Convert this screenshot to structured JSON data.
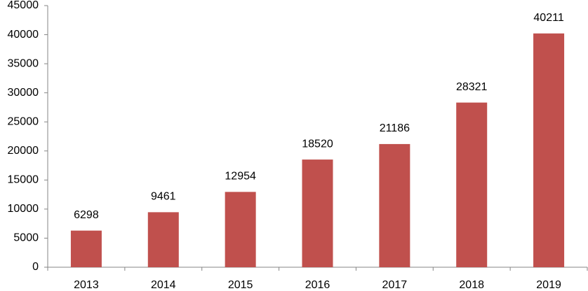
{
  "chart_data": {
    "type": "bar",
    "categories": [
      "2013",
      "2014",
      "2015",
      "2016",
      "2017",
      "2018",
      "2019"
    ],
    "values": [
      6298,
      9461,
      12954,
      18520,
      21186,
      28321,
      40211
    ],
    "color": "#c0504d",
    "ylim": [
      0,
      45000
    ],
    "yticks": [
      0,
      5000,
      10000,
      15000,
      20000,
      25000,
      30000,
      35000,
      40000,
      45000
    ],
    "grid": false,
    "data_labels": true
  }
}
